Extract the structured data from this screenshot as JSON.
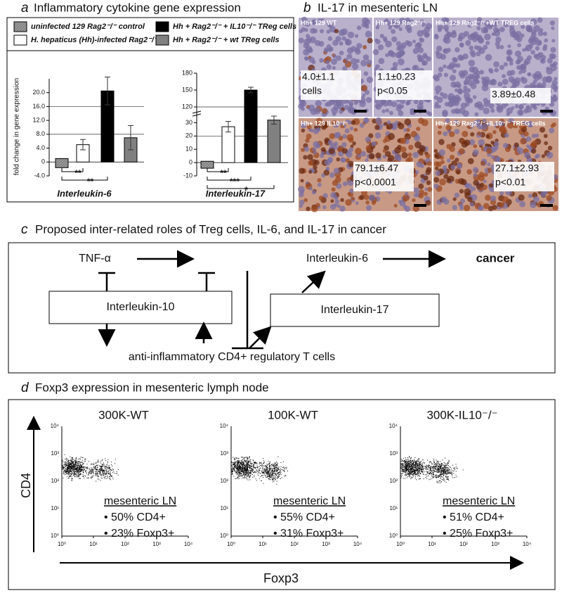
{
  "panels": {
    "a": {
      "letter": "a",
      "title": "Inflammatory cytokine gene expression",
      "legend": [
        {
          "label": "uninfected 129 Rag2⁻/⁻ control",
          "color": "#9a9a9a"
        },
        {
          "label": "H. hepaticus (Hh)-infected Rag2⁻/⁻",
          "color": "#ffffff"
        },
        {
          "label": "Hh + Rag2⁻/⁻ + IL10⁻/⁻ TReg cells",
          "color": "#000000"
        },
        {
          "label": "Hh + Rag2⁻/⁻ + wt TReg cells",
          "color": "#808080"
        }
      ],
      "ylabel": "fold change in gene expression",
      "charts": [
        {
          "type": "bar",
          "title": "Interleukin-6",
          "values": [
            1,
            5,
            20.5,
            7
          ],
          "errors": [
            0,
            1.5,
            4,
            3.5
          ],
          "ylim": [
            -4,
            24
          ],
          "yticks": [
            {
              "value": -4,
              "label": "-4.0"
            },
            0,
            {
              "value": 4,
              "label": "4.0"
            },
            {
              "value": 8,
              "label": "8.0"
            },
            {
              "value": 12,
              "label": "12.0"
            },
            {
              "value": 16,
              "label": "16.0"
            },
            {
              "value": 20,
              "label": "20.0"
            }
          ],
          "grid_at": [
            8,
            16
          ],
          "significance": [
            "**",
            "**"
          ]
        },
        {
          "type": "bar",
          "title": "Interleukin-17",
          "values": [
            1,
            27,
            150,
            32
          ],
          "errors": [
            0,
            4,
            5,
            3
          ],
          "ylim": [
            -10,
            180
          ],
          "axis_break": [
            35,
            110
          ],
          "yticks": [
            -10,
            0,
            10,
            20,
            30,
            120,
            150,
            180
          ],
          "grid_at": [
            20,
            120
          ],
          "significance": [
            "**",
            "***",
            "*"
          ]
        }
      ]
    },
    "b": {
      "letter": "b",
      "title": "IL-17 in mesenteric LN",
      "images": [
        {
          "label": "Hh+ 129 WT",
          "stats": [
            "4.0±1.1",
            "cells"
          ]
        },
        {
          "label": "Hh+ 129 Rag2⁻/⁻",
          "stats": [
            "1.1±0.23",
            "p<0.05"
          ]
        },
        {
          "label": "Hh+ 129 Rag2⁻/⁻+WT TREG cells",
          "stats": [
            "3.89±0.48"
          ]
        },
        {
          "label": "Hh+ 129 IL10⁻/⁻",
          "stats": [
            "79.1±6.47",
            "p<0.0001"
          ]
        },
        {
          "label": "Hh+ 129 Rag2⁻/⁻+IL10⁻/⁻ TREG cells",
          "stats": [
            "27.1±2.93",
            "p<0.01"
          ]
        }
      ]
    },
    "c": {
      "letter": "c",
      "title": "Proposed inter-related roles of Treg cells, IL-6, and IL-17 in cancer",
      "nodes": [
        "TNF-α",
        "Interleukin-6",
        "cancer",
        "Interleukin-10",
        "Interleukin-17",
        "anti-inflammatory CD4+ regulatory T cells"
      ]
    },
    "d": {
      "letter": "d",
      "title": "Foxp3 expression in mesenteric lymph node",
      "xlabel": "Foxp3",
      "ylabel": "CD4",
      "ticks": [
        "10⁰",
        "10¹",
        "10²",
        "10³",
        "10⁴"
      ],
      "plots": [
        {
          "title": "300K-WT",
          "lines": [
            "mesenteric LN",
            "• 50% CD4+",
            "• 23% Foxp3+"
          ]
        },
        {
          "title": "100K-WT",
          "lines": [
            "mesenteric LN",
            "• 55% CD4+",
            "• 31% Foxp3+"
          ]
        },
        {
          "title": "300K-IL10⁻/⁻",
          "lines": [
            "mesenteric LN",
            "• 51% CD4+",
            "• 25% Foxp3+"
          ]
        }
      ]
    }
  }
}
